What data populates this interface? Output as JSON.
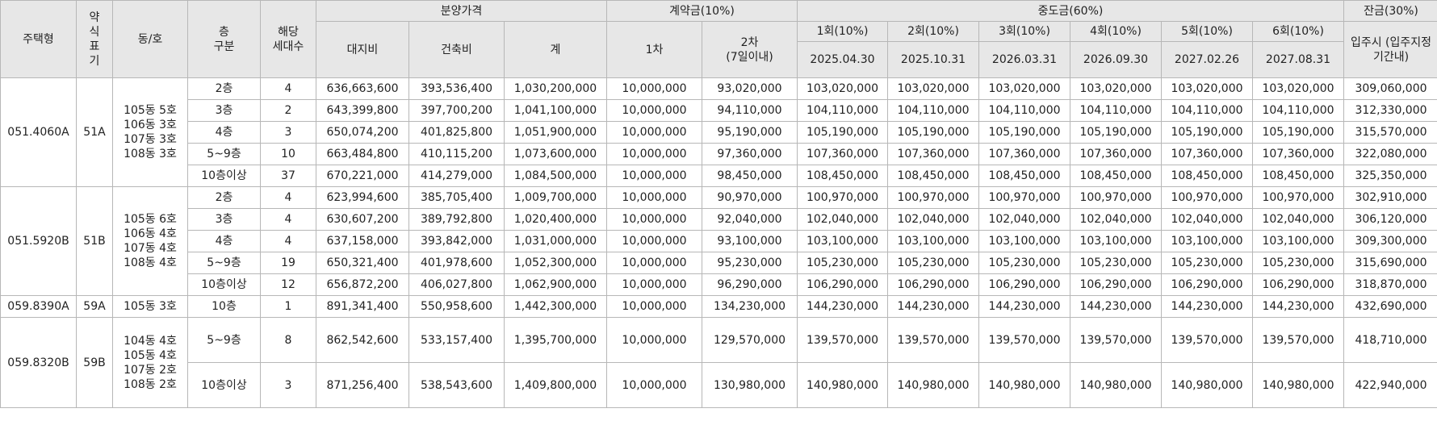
{
  "headers": {
    "house_type": "주택형",
    "abbr": [
      "약",
      "식",
      "표",
      "기"
    ],
    "dong_ho": "동/호",
    "floor_div": [
      "층",
      "구분"
    ],
    "units": [
      "해당",
      "세대수"
    ],
    "sale_price": "분양가격",
    "land": "대지비",
    "building": "건축비",
    "total": "계",
    "deposit": "계약금(10%)",
    "deposit_1": "1차",
    "deposit_2": [
      "2차",
      "(7일이내)"
    ],
    "interim": "중도금(60%)",
    "interim_rounds": [
      {
        "label": "1회(10%)",
        "date": "2025.04.30"
      },
      {
        "label": "2회(10%)",
        "date": "2025.10.31"
      },
      {
        "label": "3회(10%)",
        "date": "2026.03.31"
      },
      {
        "label": "4회(10%)",
        "date": "2026.09.30"
      },
      {
        "label": "5회(10%)",
        "date": "2027.02.26"
      },
      {
        "label": "6회(10%)",
        "date": "2027.08.31"
      }
    ],
    "balance": "잔금(30%)",
    "balance_sub": "입주시 (입주지정기간내)"
  },
  "groups": [
    {
      "type": "051.4060A",
      "abbr": "51A",
      "dongs": [
        "105동 5호",
        "106동 3호",
        "107동 3호",
        "108동 3호"
      ],
      "rows": [
        {
          "floor": "2층",
          "units": "4",
          "land": "636,663,600",
          "building": "393,536,400",
          "total": "1,030,200,000",
          "dep1": "10,000,000",
          "dep2": "93,020,000",
          "interim": "103,020,000",
          "balance": "309,060,000"
        },
        {
          "floor": "3층",
          "units": "2",
          "land": "643,399,800",
          "building": "397,700,200",
          "total": "1,041,100,000",
          "dep1": "10,000,000",
          "dep2": "94,110,000",
          "interim": "104,110,000",
          "balance": "312,330,000"
        },
        {
          "floor": "4층",
          "units": "3",
          "land": "650,074,200",
          "building": "401,825,800",
          "total": "1,051,900,000",
          "dep1": "10,000,000",
          "dep2": "95,190,000",
          "interim": "105,190,000",
          "balance": "315,570,000"
        },
        {
          "floor": "5~9층",
          "units": "10",
          "land": "663,484,800",
          "building": "410,115,200",
          "total": "1,073,600,000",
          "dep1": "10,000,000",
          "dep2": "97,360,000",
          "interim": "107,360,000",
          "balance": "322,080,000"
        },
        {
          "floor": "10층이상",
          "units": "37",
          "land": "670,221,000",
          "building": "414,279,000",
          "total": "1,084,500,000",
          "dep1": "10,000,000",
          "dep2": "98,450,000",
          "interim": "108,450,000",
          "balance": "325,350,000"
        }
      ]
    },
    {
      "type": "051.5920B",
      "abbr": "51B",
      "dongs": [
        "105동 6호",
        "106동 4호",
        "107동 4호",
        "108동 4호"
      ],
      "rows": [
        {
          "floor": "2층",
          "units": "4",
          "land": "623,994,600",
          "building": "385,705,400",
          "total": "1,009,700,000",
          "dep1": "10,000,000",
          "dep2": "90,970,000",
          "interim": "100,970,000",
          "balance": "302,910,000"
        },
        {
          "floor": "3층",
          "units": "4",
          "land": "630,607,200",
          "building": "389,792,800",
          "total": "1,020,400,000",
          "dep1": "10,000,000",
          "dep2": "92,040,000",
          "interim": "102,040,000",
          "balance": "306,120,000"
        },
        {
          "floor": "4층",
          "units": "4",
          "land": "637,158,000",
          "building": "393,842,000",
          "total": "1,031,000,000",
          "dep1": "10,000,000",
          "dep2": "93,100,000",
          "interim": "103,100,000",
          "balance": "309,300,000"
        },
        {
          "floor": "5~9층",
          "units": "19",
          "land": "650,321,400",
          "building": "401,978,600",
          "total": "1,052,300,000",
          "dep1": "10,000,000",
          "dep2": "95,230,000",
          "interim": "105,230,000",
          "balance": "315,690,000"
        },
        {
          "floor": "10층이상",
          "units": "12",
          "land": "656,872,200",
          "building": "406,027,800",
          "total": "1,062,900,000",
          "dep1": "10,000,000",
          "dep2": "96,290,000",
          "interim": "106,290,000",
          "balance": "318,870,000"
        }
      ]
    },
    {
      "type": "059.8390A",
      "abbr": "59A",
      "dongs": [
        "105동 3호"
      ],
      "rows": [
        {
          "floor": "10층",
          "units": "1",
          "land": "891,341,400",
          "building": "550,958,600",
          "total": "1,442,300,000",
          "dep1": "10,000,000",
          "dep2": "134,230,000",
          "interim": "144,230,000",
          "balance": "432,690,000"
        }
      ]
    },
    {
      "type": "059.8320B",
      "abbr": "59B",
      "dongs": [
        "104동 4호",
        "105동 4호",
        "107동 2호",
        "108동 2호"
      ],
      "rows": [
        {
          "floor": "5~9층",
          "units": "8",
          "land": "862,542,600",
          "building": "533,157,400",
          "total": "1,395,700,000",
          "dep1": "10,000,000",
          "dep2": "129,570,000",
          "interim": "139,570,000",
          "balance": "418,710,000"
        },
        {
          "floor": "10층이상",
          "units": "3",
          "land": "871,256,400",
          "building": "538,543,600",
          "total": "1,409,800,000",
          "dep1": "10,000,000",
          "dep2": "130,980,000",
          "interim": "140,980,000",
          "balance": "422,940,000"
        }
      ]
    }
  ]
}
